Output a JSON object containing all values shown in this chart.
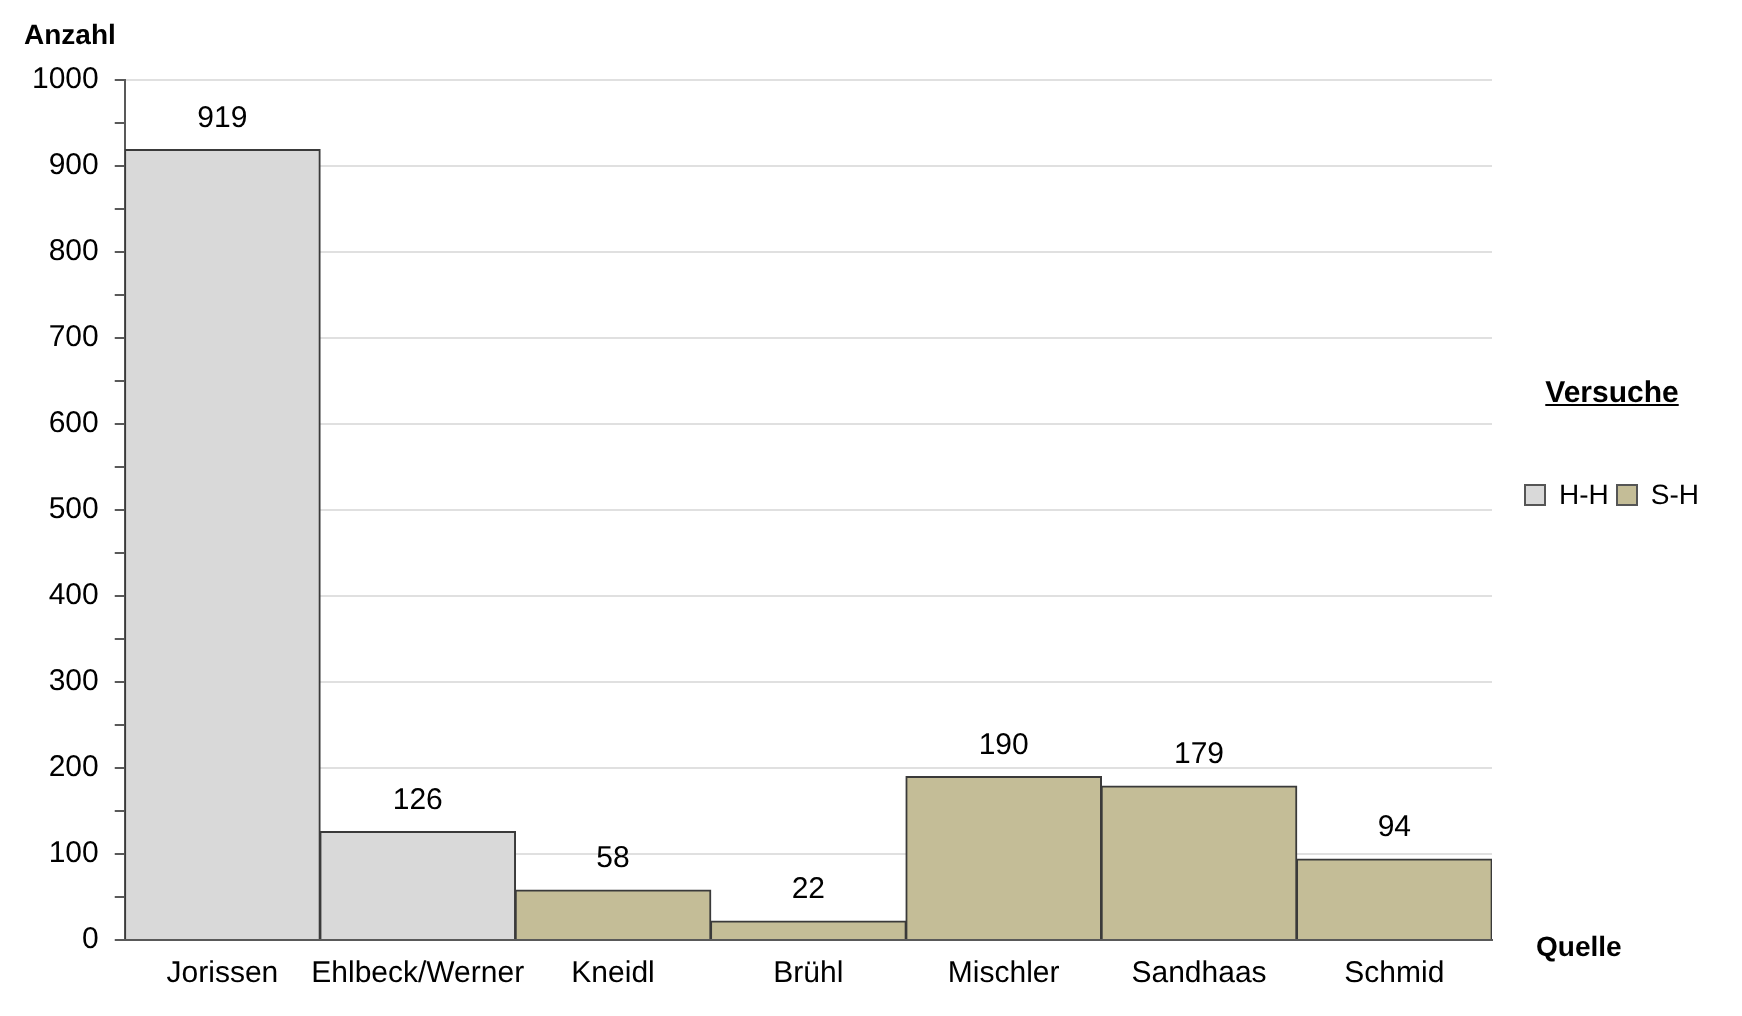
{
  "chart_data": {
    "type": "bar",
    "xlabel": "Quelle",
    "ylabel": "Anzahl",
    "legend_title": "Versuche",
    "categories": [
      "Jorissen",
      "Ehlbeck/Werner",
      "Kneidl",
      "Brühl",
      "Mischler",
      "Sandhaas",
      "Schmid"
    ],
    "series": [
      {
        "name": "H-H",
        "color": "#d9d9d9",
        "values": [
          919,
          126,
          null,
          null,
          null,
          null,
          null
        ]
      },
      {
        "name": "S-H",
        "color": "#c4bd97",
        "values": [
          null,
          null,
          58,
          22,
          190,
          179,
          94
        ]
      }
    ],
    "stacked": true,
    "ylim": [
      0,
      1000
    ],
    "yticks": [
      0,
      {
        "value": 50,
        "label": null
      },
      100,
      {
        "value": 150,
        "label": null
      },
      200,
      {
        "value": 250,
        "label": null
      },
      300,
      {
        "value": 350,
        "label": null
      },
      400,
      {
        "value": 450,
        "label": null
      },
      500,
      {
        "value": 550,
        "label": null
      },
      600,
      {
        "value": 650,
        "label": null
      },
      700,
      {
        "value": 750,
        "label": null
      },
      800,
      {
        "value": 850,
        "label": null
      },
      900,
      {
        "value": 950,
        "label": null
      },
      1000
    ],
    "grid": "y",
    "data_labels": true,
    "legend": "right"
  }
}
